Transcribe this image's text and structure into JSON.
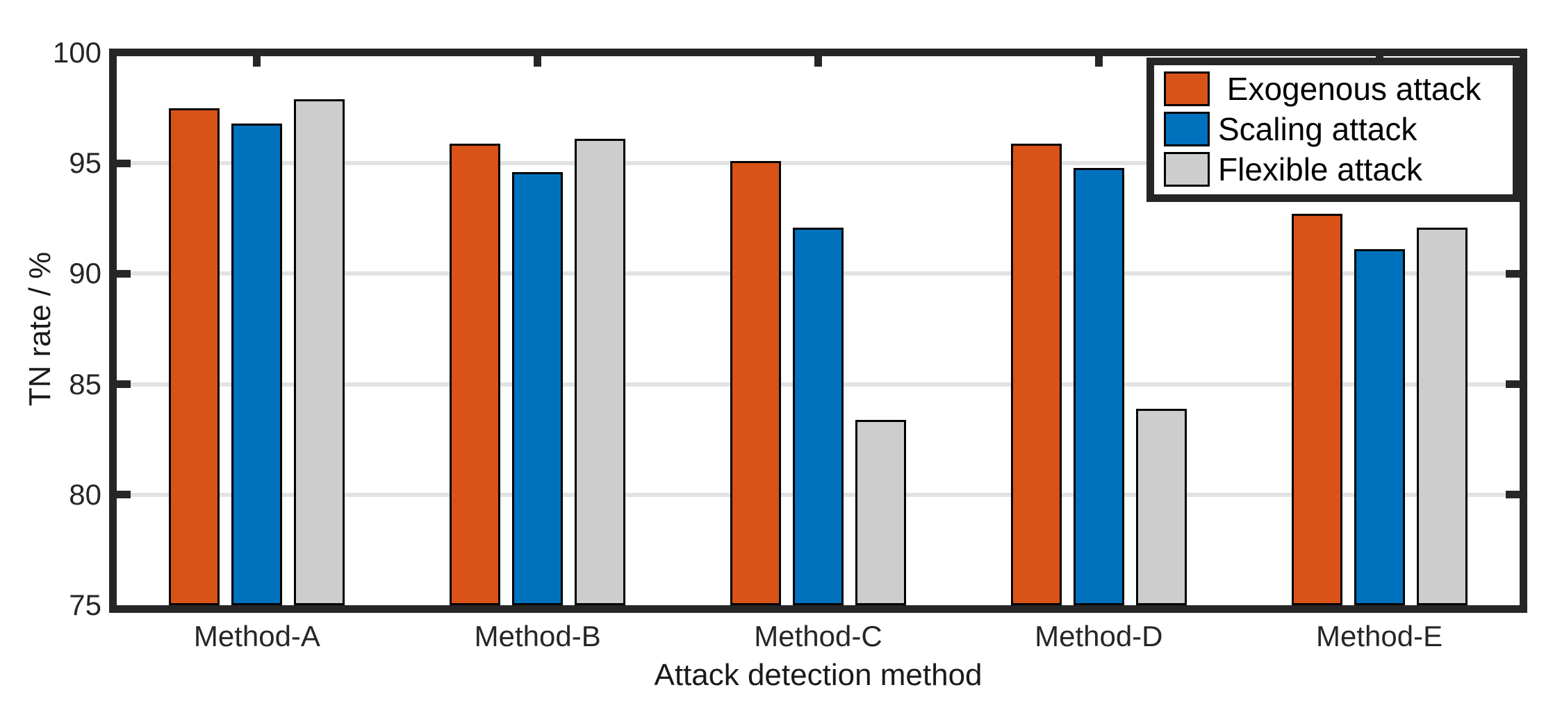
{
  "chart_data": {
    "type": "bar",
    "title": "",
    "xlabel": "Attack detection method",
    "ylabel": "TN rate / %",
    "categories": [
      "Method-A",
      "Method-B",
      "Method-C",
      "Method-D",
      "Method-E"
    ],
    "series": [
      {
        "name": " Exogenous attack",
        "color": "#D95319",
        "values": [
          97.5,
          95.9,
          95.1,
          95.9,
          92.7
        ]
      },
      {
        "name": "Scaling attack",
        "color": "#0072BD",
        "values": [
          96.8,
          94.6,
          92.1,
          94.8,
          91.1
        ]
      },
      {
        "name": "Flexible attack",
        "color": "#CDCDCD",
        "values": [
          97.9,
          96.1,
          83.4,
          83.9,
          92.1
        ]
      }
    ],
    "ylim": [
      75,
      100
    ],
    "yticks": [
      75,
      80,
      85,
      90,
      95,
      100
    ],
    "grid": "horizontal-y",
    "grid_color": "#e2e2e2",
    "axis_color": "#262626",
    "bar_edge_color": "#000000",
    "legend_position": "top-right",
    "legend_border_color": "#262626"
  }
}
